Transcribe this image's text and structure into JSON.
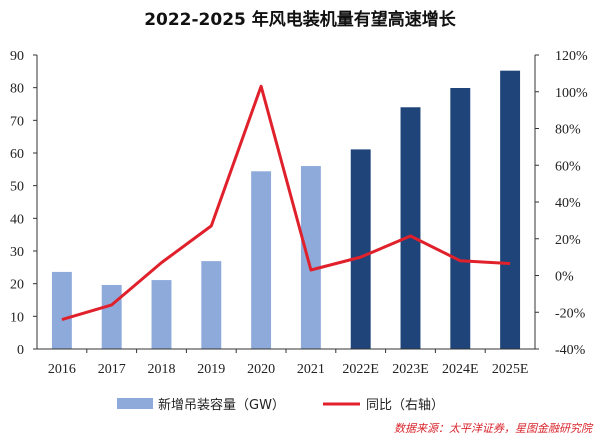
{
  "chart_data": {
    "type": "bar+line",
    "title": "2022-2025 年风电装机量有望高速增长",
    "categories": [
      "2016",
      "2017",
      "2018",
      "2019",
      "2020",
      "2021",
      "2022E",
      "2023E",
      "2024E",
      "2025E"
    ],
    "series": [
      {
        "name": "新增吊装容量（GW）",
        "type": "bar",
        "axis": "left",
        "values": [
          23.6,
          19.6,
          21.1,
          26.9,
          54.4,
          56.0,
          61.1,
          74.0,
          79.9,
          85.2
        ],
        "colors": [
          "#8eaadb",
          "#8eaadb",
          "#8eaadb",
          "#8eaadb",
          "#8eaadb",
          "#8eaadb",
          "#1f4479",
          "#1f4479",
          "#1f4479",
          "#1f4479"
        ]
      },
      {
        "name": "同比（右轴）",
        "type": "line",
        "axis": "right",
        "color": "#e0212c",
        "values": [
          -24,
          -16,
          7,
          27,
          103,
          3,
          10,
          21.5,
          8,
          6.5
        ]
      }
    ],
    "ylim": [
      0,
      90
    ],
    "yticks": [
      "0",
      "10",
      "20",
      "30",
      "40",
      "50",
      "60",
      "70",
      "80",
      "90"
    ],
    "y2lim": [
      -40,
      120
    ],
    "y2ticks": [
      "-40%",
      "-20%",
      "0%",
      "20%",
      "40%",
      "60%",
      "80%",
      "100%",
      "120%"
    ],
    "grid": false,
    "legend": "bottom",
    "source": "数据来源：太平洋证券，星图金融研究院"
  }
}
